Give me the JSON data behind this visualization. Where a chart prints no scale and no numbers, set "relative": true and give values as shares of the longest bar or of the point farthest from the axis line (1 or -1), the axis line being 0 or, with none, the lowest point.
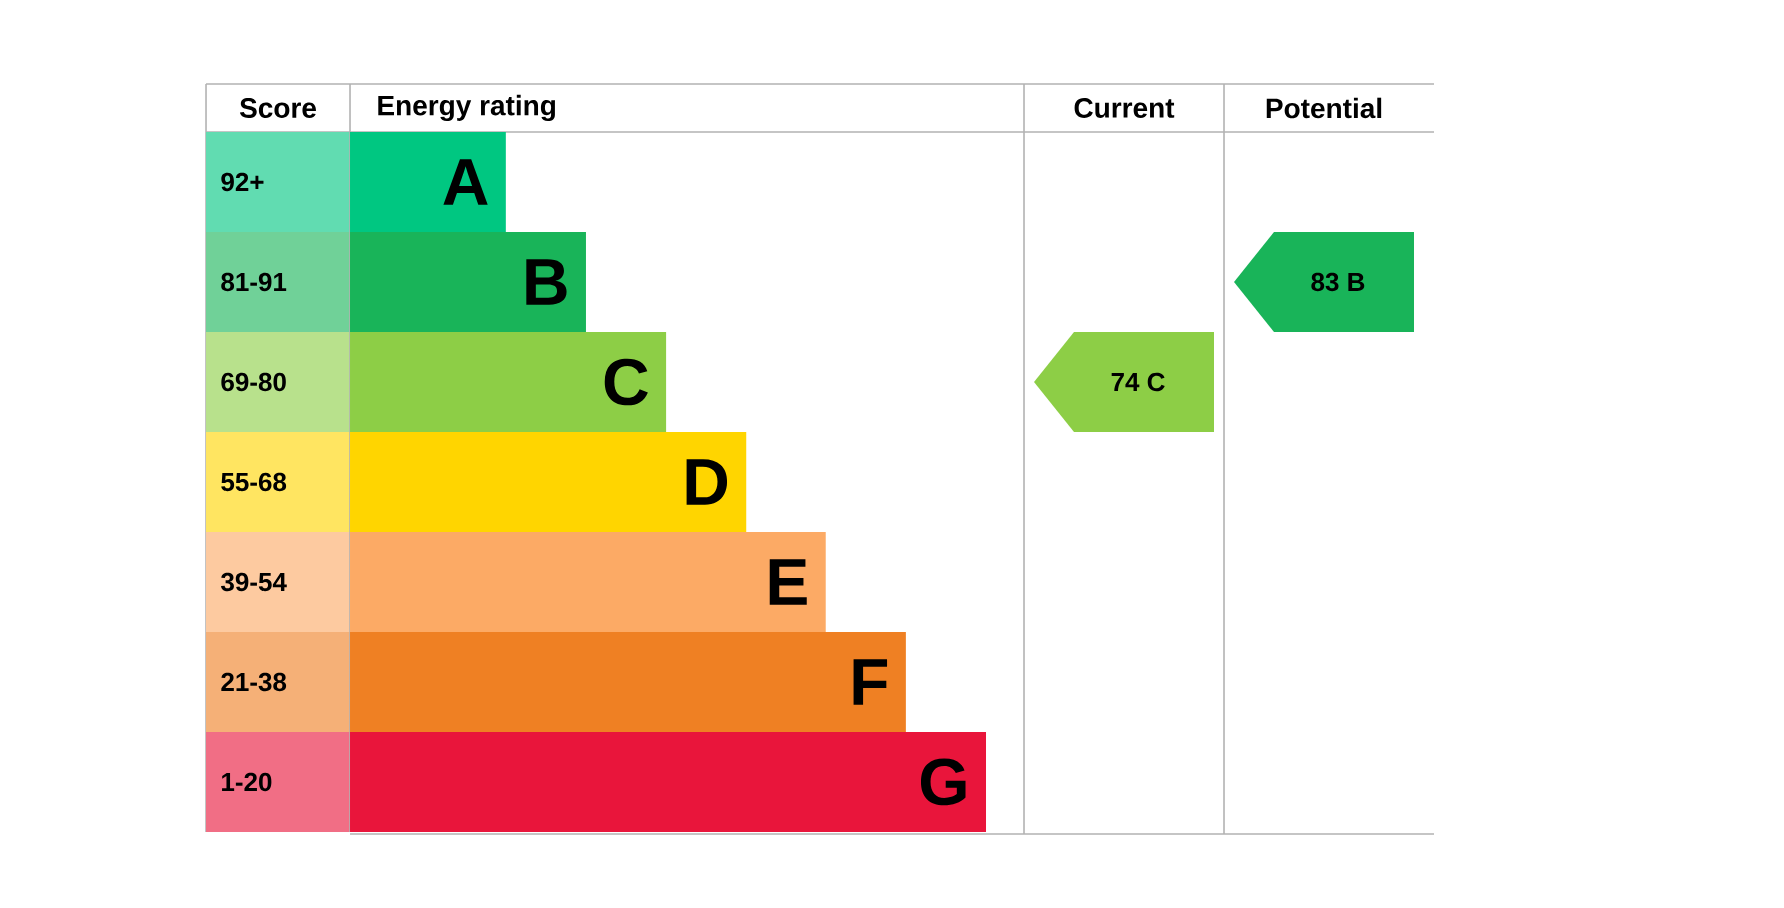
{
  "chart_data": {
    "type": "bar",
    "orientation": "horizontal",
    "relative": true,
    "xlabel": "Energy rating",
    "ylabel": "Score",
    "categories": [
      "92+",
      "81-91",
      "69-80",
      "55-68",
      "39-54",
      "21-38",
      "1-20"
    ],
    "values": [
      0.245,
      0.371,
      0.497,
      0.623,
      0.748,
      0.874,
      1
    ],
    "colors": [
      "#00c781",
      "#19b459",
      "#8dce46",
      "#ffd500",
      "#fcaa65",
      "#ef8023",
      "#e9153b"
    ],
    "annotations": [
      "Current",
      "Potential",
      {
        "text": "A",
        "x": 0.245,
        "y": "92+"
      },
      {
        "text": "B",
        "x": 0.371,
        "y": "81-91"
      },
      {
        "text": "C",
        "x": 0.497,
        "y": "69-80"
      },
      {
        "text": "D",
        "x": 0.623,
        "y": "55-68"
      },
      {
        "text": "E",
        "x": 0.748,
        "y": "39-54"
      },
      {
        "text": "F",
        "x": 0.874,
        "y": "21-38"
      },
      {
        "text": "G",
        "x": 1,
        "y": "1-20"
      },
      "74  C",
      "83  B"
    ]
  }
}
